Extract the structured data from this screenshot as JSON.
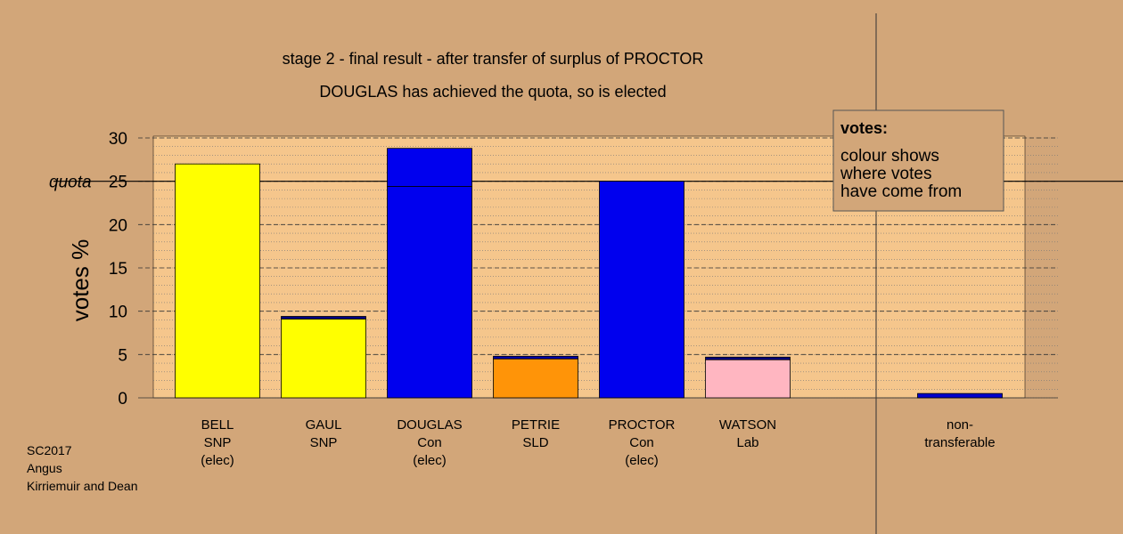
{
  "chart_data": {
    "type": "stacked_bar",
    "title": "stage 2 - final result - after transfer of surplus of PROCTOR",
    "subtitle": "DOUGLAS has achieved the quota, so is elected",
    "y_label": "votes %",
    "categories": [
      [
        "BELL",
        "SNP",
        "(elec)"
      ],
      [
        "GAUL",
        "SNP"
      ],
      [
        "DOUGLAS",
        "Con",
        "(elec)"
      ],
      [
        "PETRIE",
        "SLD"
      ],
      [
        "PROCTOR",
        "Con",
        "(elec)"
      ],
      [
        "WATSON",
        "Lab"
      ],
      null,
      [
        "non-",
        "transferable"
      ]
    ],
    "series": [
      {
        "values": [
          27.0,
          9.1,
          24.4,
          4.5,
          25.0,
          4.4,
          null,
          null
        ],
        "colors": [
          "#ffff00",
          "#ffff00",
          "#0000ee",
          "#ff9408",
          "#0000ee",
          "#ffb6c1",
          null,
          null
        ]
      },
      {
        "values": [
          null,
          0.3,
          4.4,
          0.3,
          null,
          0.3,
          null,
          0.5
        ],
        "colors": [
          null,
          "#000080",
          "#0000ee",
          "#0000aa",
          null,
          "#000080",
          null,
          "#0000cc"
        ]
      }
    ],
    "ylim": [
      0,
      30
    ],
    "yticks": [
      0,
      5,
      10,
      15,
      20,
      25,
      30
    ],
    "minor_ystep": 1,
    "grid": true,
    "quota": 25,
    "quota_label": "quota",
    "legend_box": {
      "title": "votes:",
      "lines": [
        "colour shows",
        "where votes",
        "have come from"
      ]
    },
    "footnote": [
      "SC2017",
      "Angus",
      "Kirriemuir and Dean"
    ]
  }
}
